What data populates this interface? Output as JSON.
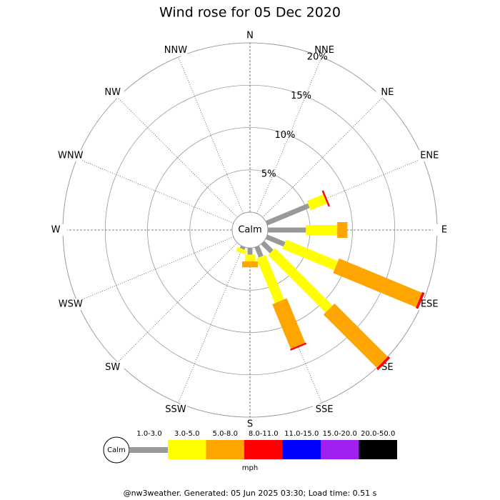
{
  "chart_data": {
    "type": "windrose",
    "title": "Wind rose for 05 Dec 2020",
    "directions": [
      "N",
      "NNE",
      "NE",
      "ENE",
      "E",
      "ESE",
      "SE",
      "SSE",
      "S",
      "SSW",
      "SW",
      "WSW",
      "W",
      "WNW",
      "NW",
      "NNW"
    ],
    "rlim": [
      0,
      20
    ],
    "rticks": [
      {
        "value": 5,
        "label": "5%"
      },
      {
        "value": 10,
        "label": "10%"
      },
      {
        "value": 15,
        "label": "15%"
      },
      {
        "value": 20,
        "label": "20%"
      }
    ],
    "calm_label": "Calm",
    "unit": "mph",
    "series": [
      {
        "name": "1.0-3.0",
        "color": "#999999",
        "values": [
          0,
          0,
          0,
          5.4,
          4.5,
          2.3,
          1.5,
          1.3,
          0.8,
          0.3,
          0,
          0,
          0,
          0,
          0,
          0
        ]
      },
      {
        "name": "3.0-5.0",
        "color": "#ffff00",
        "values": [
          0,
          0,
          0,
          2.1,
          3.7,
          6.6,
          9.6,
          5.7,
          0.8,
          0.5,
          0,
          0,
          0,
          0,
          0,
          0
        ]
      },
      {
        "name": "5.0-8.0",
        "color": "#ffa500",
        "values": [
          0,
          0,
          0,
          0,
          1.2,
          10.6,
          8.9,
          5.7,
          0.7,
          0,
          0,
          0,
          0,
          0,
          0,
          0
        ]
      },
      {
        "name": "8.0-11.0",
        "color": "#ff0000",
        "values": [
          0,
          0,
          0,
          0.2,
          0,
          0.3,
          0.3,
          0.2,
          0,
          0,
          0,
          0,
          0,
          0,
          0,
          0
        ]
      },
      {
        "name": "11.0-15.0",
        "color": "#0000ff",
        "values": [
          0,
          0,
          0,
          0,
          0,
          0,
          0,
          0,
          0,
          0,
          0,
          0,
          0,
          0,
          0,
          0
        ]
      },
      {
        "name": "15.0-20.0",
        "color": "#a020f0",
        "values": [
          0,
          0,
          0,
          0,
          0,
          0,
          0,
          0,
          0,
          0,
          0,
          0,
          0,
          0,
          0,
          0
        ]
      },
      {
        "name": "20.0-50.0",
        "color": "#000000",
        "values": [
          0,
          0,
          0,
          0,
          0,
          0,
          0,
          0,
          0,
          0,
          0,
          0,
          0,
          0,
          0,
          0
        ]
      }
    ],
    "footer": "@nw3weather. Generated: 05 Jun 2025 03:30; Load time: 0.51 s"
  }
}
